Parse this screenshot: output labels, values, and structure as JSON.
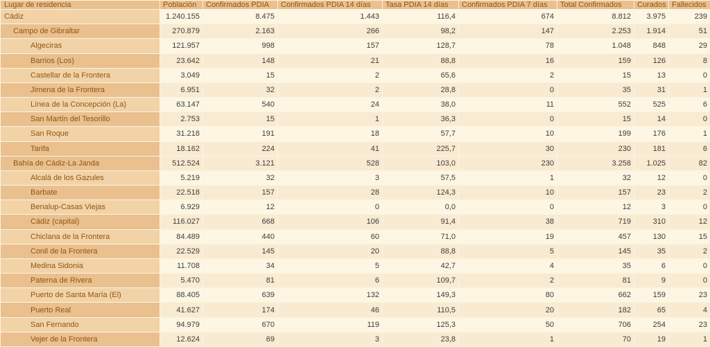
{
  "table": {
    "columns": [
      "Lugar de residencia",
      "Población",
      "Confirmados PDIA",
      "Confirmados PDIA 14 días",
      "Tasa PDIA 14 días",
      "Confirmados PDIA 7 días",
      "Total Confirmados",
      "Curados",
      "Fallecidos"
    ],
    "column_keys": [
      "poblacion",
      "confirmados-pdia",
      "confirmados-pdia-14-dias",
      "tasa-pdia-14-dias",
      "confirmados-pdia-7-dias",
      "total-confirmados",
      "curados",
      "fallecidos"
    ],
    "rows": [
      {
        "name": "Cádiz",
        "level": 0,
        "values": [
          "1.240.155",
          "8.475",
          "1.443",
          "116,4",
          "674",
          "8.812",
          "3.975",
          "239"
        ]
      },
      {
        "name": "Campo de Gibraltar",
        "level": 1,
        "values": [
          "270.879",
          "2.163",
          "266",
          "98,2",
          "147",
          "2.253",
          "1.914",
          "51"
        ]
      },
      {
        "name": "Algeciras",
        "level": 2,
        "values": [
          "121.957",
          "998",
          "157",
          "128,7",
          "78",
          "1.048",
          "848",
          "29"
        ]
      },
      {
        "name": "Barrios (Los)",
        "level": 2,
        "values": [
          "23.642",
          "148",
          "21",
          "88,8",
          "16",
          "159",
          "126",
          "8"
        ]
      },
      {
        "name": "Castellar de la Frontera",
        "level": 2,
        "values": [
          "3.049",
          "15",
          "2",
          "65,6",
          "2",
          "15",
          "13",
          "0"
        ]
      },
      {
        "name": "Jimena de la Frontera",
        "level": 2,
        "values": [
          "6.951",
          "32",
          "2",
          "28,8",
          "0",
          "35",
          "31",
          "1"
        ]
      },
      {
        "name": "Línea de la Concepción (La)",
        "level": 2,
        "values": [
          "63.147",
          "540",
          "24",
          "38,0",
          "11",
          "552",
          "525",
          "6"
        ]
      },
      {
        "name": "San Martín del Tesorillo",
        "level": 2,
        "values": [
          "2.753",
          "15",
          "1",
          "36,3",
          "0",
          "15",
          "14",
          "0"
        ]
      },
      {
        "name": "San Roque",
        "level": 2,
        "values": [
          "31.218",
          "191",
          "18",
          "57,7",
          "10",
          "199",
          "176",
          "1"
        ]
      },
      {
        "name": "Tarifa",
        "level": 2,
        "values": [
          "18.162",
          "224",
          "41",
          "225,7",
          "30",
          "230",
          "181",
          "6"
        ]
      },
      {
        "name": "Bahía de Cádiz-La Janda",
        "level": 1,
        "values": [
          "512.524",
          "3.121",
          "528",
          "103,0",
          "230",
          "3.258",
          "1.025",
          "82"
        ]
      },
      {
        "name": "Alcalá de los Gazules",
        "level": 2,
        "values": [
          "5.219",
          "32",
          "3",
          "57,5",
          "1",
          "32",
          "12",
          "0"
        ]
      },
      {
        "name": "Barbate",
        "level": 2,
        "values": [
          "22.518",
          "157",
          "28",
          "124,3",
          "10",
          "157",
          "23",
          "2"
        ]
      },
      {
        "name": "Benalup-Casas Viejas",
        "level": 2,
        "values": [
          "6.929",
          "12",
          "0",
          "0,0",
          "0",
          "12",
          "3",
          "0"
        ]
      },
      {
        "name": "Cádiz (capital)",
        "level": 2,
        "values": [
          "116.027",
          "668",
          "106",
          "91,4",
          "38",
          "719",
          "310",
          "12"
        ]
      },
      {
        "name": "Chiclana de la Frontera",
        "level": 2,
        "values": [
          "84.489",
          "440",
          "60",
          "71,0",
          "19",
          "457",
          "130",
          "15"
        ]
      },
      {
        "name": "Conil de la Frontera",
        "level": 2,
        "values": [
          "22.529",
          "145",
          "20",
          "88,8",
          "5",
          "145",
          "35",
          "2"
        ]
      },
      {
        "name": "Medina Sidonia",
        "level": 2,
        "values": [
          "11.708",
          "34",
          "5",
          "42,7",
          "4",
          "35",
          "6",
          "0"
        ]
      },
      {
        "name": "Paterna de Rivera",
        "level": 2,
        "values": [
          "5.470",
          "81",
          "6",
          "109,7",
          "2",
          "81",
          "9",
          "0"
        ]
      },
      {
        "name": "Puerto de Santa María (El)",
        "level": 2,
        "values": [
          "88.405",
          "639",
          "132",
          "149,3",
          "80",
          "662",
          "159",
          "23"
        ]
      },
      {
        "name": "Puerto Real",
        "level": 2,
        "values": [
          "41.627",
          "174",
          "46",
          "110,5",
          "20",
          "182",
          "65",
          "4"
        ]
      },
      {
        "name": "San Fernando",
        "level": 2,
        "values": [
          "94.979",
          "670",
          "119",
          "125,3",
          "50",
          "706",
          "254",
          "23"
        ]
      },
      {
        "name": "Vejer de la Frontera",
        "level": 2,
        "values": [
          "12.624",
          "69",
          "3",
          "23,8",
          "1",
          "70",
          "19",
          "1"
        ]
      }
    ]
  },
  "colors": {
    "header_bg": "#e9c08e",
    "label_row_light": "#f2d3a7",
    "label_row_dark": "#e9c08e",
    "data_row_light": "#fdf6e3",
    "data_row_dark": "#f9ebd1",
    "label_text": "#905513",
    "data_text": "#3c3c3c",
    "grid_line": "#fcf3e0",
    "outer_border": "#d9ad79"
  }
}
